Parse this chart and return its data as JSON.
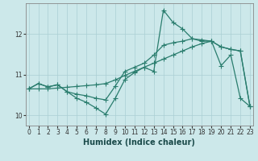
{
  "xlabel": "Humidex (Indice chaleur)",
  "ylabel": "",
  "background_color": "#cce8ea",
  "grid_color": "#aacfd4",
  "line_color": "#2a7d6e",
  "x_ticks": [
    0,
    1,
    2,
    3,
    4,
    5,
    6,
    7,
    8,
    9,
    10,
    11,
    12,
    13,
    14,
    15,
    16,
    17,
    18,
    19,
    20,
    21,
    22,
    23
  ],
  "ylim": [
    9.75,
    12.75
  ],
  "xlim": [
    -0.3,
    23.3
  ],
  "yticks": [
    10,
    11,
    12
  ],
  "series": [
    [
      10.65,
      10.78,
      10.7,
      10.75,
      10.58,
      10.42,
      10.32,
      10.18,
      10.03,
      10.42,
      10.88,
      11.05,
      11.18,
      11.08,
      12.58,
      12.28,
      12.12,
      11.88,
      11.82,
      11.82,
      11.22,
      11.48,
      10.42,
      10.22
    ],
    [
      10.65,
      10.78,
      10.7,
      10.75,
      10.58,
      10.52,
      10.48,
      10.42,
      10.38,
      10.72,
      11.08,
      11.18,
      11.28,
      11.48,
      11.72,
      11.78,
      11.82,
      11.88,
      11.85,
      11.82,
      11.68,
      11.62,
      11.58,
      10.22
    ],
    [
      10.65,
      10.65,
      10.65,
      10.67,
      10.69,
      10.71,
      10.73,
      10.75,
      10.78,
      10.87,
      10.98,
      11.08,
      11.18,
      11.28,
      11.38,
      11.48,
      11.58,
      11.68,
      11.76,
      11.82,
      11.68,
      11.62,
      11.58,
      10.22
    ]
  ],
  "marker": "+",
  "markersize": 4.0,
  "linewidth": 0.9,
  "tick_fontsize": 5.5,
  "xlabel_fontsize": 7.0
}
